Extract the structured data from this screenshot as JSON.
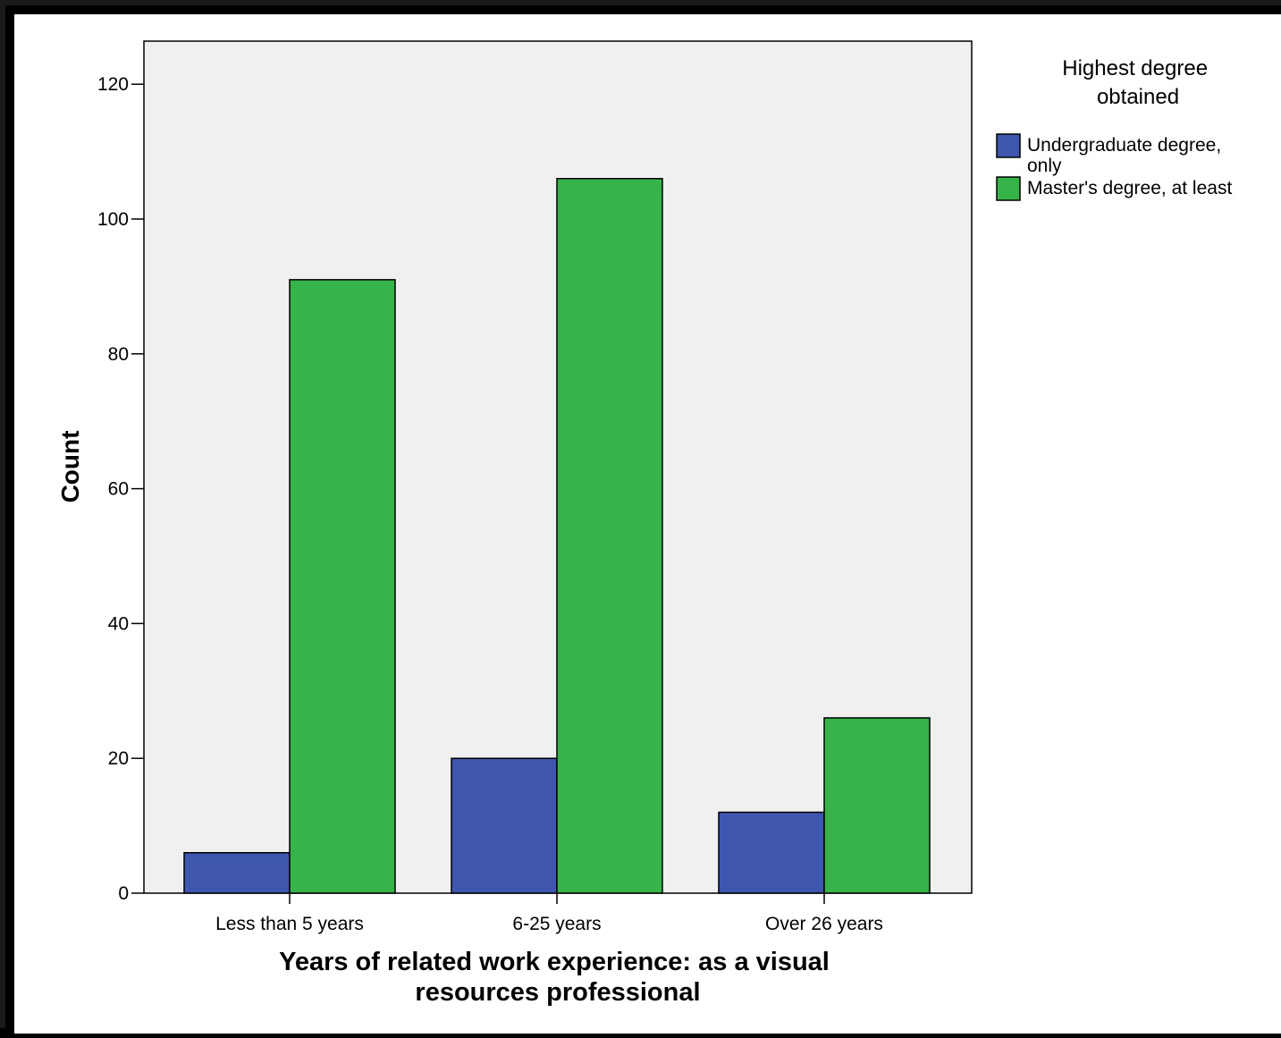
{
  "chart_data": {
    "type": "bar",
    "ylabel": "Count",
    "xlabel": "Years of related work experience: as a visual resources professional",
    "xlabel_lines": [
      "Years of related work experience: as a visual",
      "resources professional"
    ],
    "categories": [
      "Less than 5 years",
      "6-25 years",
      "Over 26 years"
    ],
    "series": [
      {
        "name": "Undergraduate degree, only",
        "name_lines": [
          "Undergraduate degree,",
          "only"
        ],
        "values": [
          6,
          20,
          12
        ],
        "color": "#3F56AF"
      },
      {
        "name": "Master's degree, at least",
        "name_lines": [
          "Master's degree, at least"
        ],
        "values": [
          91,
          106,
          26
        ],
        "color": "#36B44A"
      }
    ],
    "legend_title": "Highest degree obtained",
    "legend_title_lines": [
      "Highest degree",
      "obtained"
    ],
    "legend_position": "right",
    "ylim": [
      0,
      126
    ],
    "yticks": [
      0,
      20,
      40,
      60,
      80,
      100,
      120
    ],
    "plot_background": "#F0F0F0",
    "grid": false
  }
}
